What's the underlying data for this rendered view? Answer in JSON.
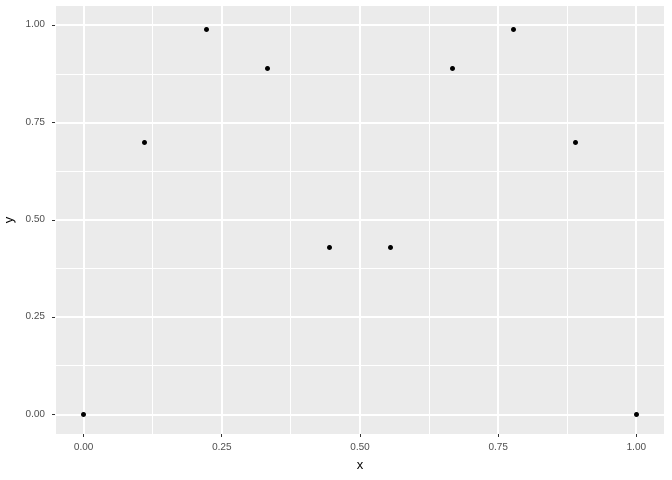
{
  "chart_data": {
    "type": "scatter",
    "title": "",
    "xlabel": "x",
    "ylabel": "y",
    "x_domain": [
      -0.05,
      1.05
    ],
    "y_domain": [
      -0.05,
      1.05
    ],
    "x_major_ticks": {
      "values": [
        0,
        0.25,
        0.5,
        0.75,
        1.0
      ],
      "labels": [
        "0.00",
        "0.25",
        "0.50",
        "0.75",
        "1.00"
      ]
    },
    "y_major_ticks": {
      "values": [
        0,
        0.25,
        0.5,
        0.75,
        1.0
      ],
      "labels": [
        "0.00",
        "0.25",
        "0.50",
        "0.75",
        "1.00"
      ]
    },
    "x_minor_ticks": [
      0.125,
      0.375,
      0.625,
      0.875
    ],
    "y_minor_ticks": [
      0.125,
      0.375,
      0.625,
      0.875
    ],
    "grid": true,
    "legend_position": "none",
    "points": {
      "x": [
        0.0,
        0.111,
        0.222,
        0.333,
        0.444,
        0.556,
        0.667,
        0.778,
        0.889,
        1.0
      ],
      "y": [
        0.0,
        0.7,
        0.99,
        0.89,
        0.43,
        0.43,
        0.89,
        0.99,
        0.7,
        0.0
      ]
    },
    "colors": {
      "panel_background": "#ebebeb",
      "gridline": "#ffffff",
      "point": "#000000",
      "tick_mark": "#333333",
      "tick_label": "#4d4d4d",
      "axis_title": "#000000",
      "figure_background": "#ffffff"
    }
  }
}
